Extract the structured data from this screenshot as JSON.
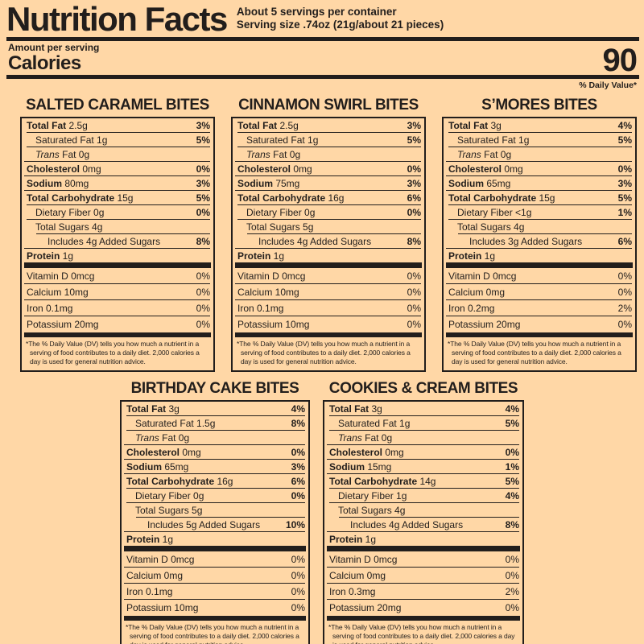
{
  "colors": {
    "background": "#ffd7a6",
    "ink": "#221e1c"
  },
  "header": {
    "title": "Nutrition Facts",
    "servings_per_container": "About 5 servings per container",
    "serving_size": "Serving size .74oz (21g/about 21 pieces)",
    "amount_per_serving_label": "Amount per serving",
    "calories_label": "Calories",
    "calories_value": "90",
    "daily_value_note": "% Daily Value*"
  },
  "footnote": "*The % Daily Value (DV) tells you how much a nutrient in a serving of food contributes to a daily diet. 2,000 calories a day is used for general nutrition advice.",
  "labels": [
    {
      "title": "SALTED CARAMEL BITES",
      "slug": "salted-caramel-bites",
      "nutrients": [
        {
          "name": "Total Fat",
          "amount": "2.5g",
          "dv": "3%",
          "level": 0,
          "bold": true
        },
        {
          "name": "Saturated Fat",
          "amount": "1g",
          "dv": "5%",
          "level": 1
        },
        {
          "name": "Trans Fat",
          "amount": "0g",
          "dv": "",
          "level": 1,
          "italic": true
        },
        {
          "name": "Cholesterol",
          "amount": "0mg",
          "dv": "0%",
          "level": 0,
          "bold": true
        },
        {
          "name": "Sodium",
          "amount": "80mg",
          "dv": "3%",
          "level": 0,
          "bold": true
        },
        {
          "name": "Total Carbohydrate",
          "amount": "15g",
          "dv": "5%",
          "level": 0,
          "bold": true
        },
        {
          "name": "Dietary Fiber",
          "amount": "0g",
          "dv": "0%",
          "level": 1
        },
        {
          "name": "Total Sugars",
          "amount": "4g",
          "dv": "",
          "level": 1
        },
        {
          "name": "Includes 4g Added Sugars",
          "amount": "",
          "dv": "8%",
          "level": 2
        },
        {
          "name": "Protein",
          "amount": "1g",
          "dv": "",
          "level": 0,
          "bold": true
        }
      ],
      "vitamins": [
        {
          "name": "Vitamin D",
          "amount": "0mcg",
          "dv": "0%"
        },
        {
          "name": "Calcium",
          "amount": "10mg",
          "dv": "0%"
        },
        {
          "name": "Iron",
          "amount": "0.1mg",
          "dv": "0%"
        },
        {
          "name": "Potassium",
          "amount": "20mg",
          "dv": "0%"
        }
      ]
    },
    {
      "title": "CINNAMON SWIRL BITES",
      "slug": "cinnamon-swirl-bites",
      "nutrients": [
        {
          "name": "Total Fat",
          "amount": "2.5g",
          "dv": "3%",
          "level": 0,
          "bold": true
        },
        {
          "name": "Saturated Fat",
          "amount": "1g",
          "dv": "5%",
          "level": 1
        },
        {
          "name": "Trans Fat",
          "amount": "0g",
          "dv": "",
          "level": 1,
          "italic": true
        },
        {
          "name": "Cholesterol",
          "amount": "0mg",
          "dv": "0%",
          "level": 0,
          "bold": true
        },
        {
          "name": "Sodium",
          "amount": "75mg",
          "dv": "3%",
          "level": 0,
          "bold": true
        },
        {
          "name": "Total Carbohydrate",
          "amount": "16g",
          "dv": "6%",
          "level": 0,
          "bold": true
        },
        {
          "name": "Dietary Fiber",
          "amount": "0g",
          "dv": "0%",
          "level": 1
        },
        {
          "name": "Total Sugars",
          "amount": "5g",
          "dv": "",
          "level": 1
        },
        {
          "name": "Includes 4g Added Sugars",
          "amount": "",
          "dv": "8%",
          "level": 2
        },
        {
          "name": "Protein",
          "amount": "1g",
          "dv": "",
          "level": 0,
          "bold": true
        }
      ],
      "vitamins": [
        {
          "name": "Vitamin D",
          "amount": "0mcg",
          "dv": "0%"
        },
        {
          "name": "Calcium",
          "amount": "10mg",
          "dv": "0%"
        },
        {
          "name": "Iron",
          "amount": "0.1mg",
          "dv": "0%"
        },
        {
          "name": "Potassium",
          "amount": "10mg",
          "dv": "0%"
        }
      ]
    },
    {
      "title": "S’MORES BITES",
      "slug": "smores-bites",
      "nutrients": [
        {
          "name": "Total Fat",
          "amount": "3g",
          "dv": "4%",
          "level": 0,
          "bold": true
        },
        {
          "name": "Saturated Fat",
          "amount": "1g",
          "dv": "5%",
          "level": 1
        },
        {
          "name": "Trans Fat",
          "amount": "0g",
          "dv": "",
          "level": 1,
          "italic": true
        },
        {
          "name": "Cholesterol",
          "amount": "0mg",
          "dv": "0%",
          "level": 0,
          "bold": true
        },
        {
          "name": "Sodium",
          "amount": "65mg",
          "dv": "3%",
          "level": 0,
          "bold": true
        },
        {
          "name": "Total Carbohydrate",
          "amount": "15g",
          "dv": "5%",
          "level": 0,
          "bold": true
        },
        {
          "name": "Dietary Fiber",
          "amount": "<1g",
          "dv": "1%",
          "level": 1
        },
        {
          "name": "Total Sugars",
          "amount": "4g",
          "dv": "",
          "level": 1
        },
        {
          "name": "Includes 3g Added Sugars",
          "amount": "",
          "dv": "6%",
          "level": 2
        },
        {
          "name": "Protein",
          "amount": "1g",
          "dv": "",
          "level": 0,
          "bold": true
        }
      ],
      "vitamins": [
        {
          "name": "Vitamin D",
          "amount": "0mcg",
          "dv": "0%"
        },
        {
          "name": "Calcium",
          "amount": "0mg",
          "dv": "0%"
        },
        {
          "name": "Iron",
          "amount": "0.2mg",
          "dv": "2%"
        },
        {
          "name": "Potassium",
          "amount": "20mg",
          "dv": "0%"
        }
      ]
    },
    {
      "title": "BIRTHDAY CAKE BITES",
      "slug": "birthday-cake-bites",
      "nutrients": [
        {
          "name": "Total Fat",
          "amount": "3g",
          "dv": "4%",
          "level": 0,
          "bold": true
        },
        {
          "name": "Saturated Fat",
          "amount": "1.5g",
          "dv": "8%",
          "level": 1
        },
        {
          "name": "Trans Fat",
          "amount": "0g",
          "dv": "",
          "level": 1,
          "italic": true
        },
        {
          "name": "Cholesterol",
          "amount": "0mg",
          "dv": "0%",
          "level": 0,
          "bold": true
        },
        {
          "name": "Sodium",
          "amount": "65mg",
          "dv": "3%",
          "level": 0,
          "bold": true
        },
        {
          "name": "Total Carbohydrate",
          "amount": "16g",
          "dv": "6%",
          "level": 0,
          "bold": true
        },
        {
          "name": "Dietary Fiber",
          "amount": "0g",
          "dv": "0%",
          "level": 1
        },
        {
          "name": "Total Sugars",
          "amount": "5g",
          "dv": "",
          "level": 1
        },
        {
          "name": "Includes 5g Added Sugars",
          "amount": "",
          "dv": "10%",
          "level": 2
        },
        {
          "name": "Protein",
          "amount": "1g",
          "dv": "",
          "level": 0,
          "bold": true
        }
      ],
      "vitamins": [
        {
          "name": "Vitamin D",
          "amount": "0mcg",
          "dv": "0%"
        },
        {
          "name": "Calcium",
          "amount": "0mg",
          "dv": "0%"
        },
        {
          "name": "Iron",
          "amount": "0.1mg",
          "dv": "0%"
        },
        {
          "name": "Potassium",
          "amount": "10mg",
          "dv": "0%"
        }
      ]
    },
    {
      "title": "COOKIES & CREAM BITES",
      "slug": "cookies-and-cream-bites",
      "nutrients": [
        {
          "name": "Total Fat",
          "amount": "3g",
          "dv": "4%",
          "level": 0,
          "bold": true
        },
        {
          "name": "Saturated Fat",
          "amount": "1g",
          "dv": "5%",
          "level": 1
        },
        {
          "name": "Trans Fat",
          "amount": "0g",
          "dv": "",
          "level": 1,
          "italic": true
        },
        {
          "name": "Cholesterol",
          "amount": "0mg",
          "dv": "0%",
          "level": 0,
          "bold": true
        },
        {
          "name": "Sodium",
          "amount": "15mg",
          "dv": "1%",
          "level": 0,
          "bold": true
        },
        {
          "name": "Total Carbohydrate",
          "amount": "14g",
          "dv": "5%",
          "level": 0,
          "bold": true
        },
        {
          "name": "Dietary Fiber",
          "amount": "1g",
          "dv": "4%",
          "level": 1
        },
        {
          "name": "Total Sugars",
          "amount": "4g",
          "dv": "",
          "level": 1
        },
        {
          "name": "Includes 4g Added Sugars",
          "amount": "",
          "dv": "8%",
          "level": 2
        },
        {
          "name": "Protein",
          "amount": "1g",
          "dv": "",
          "level": 0,
          "bold": true
        }
      ],
      "vitamins": [
        {
          "name": "Vitamin D",
          "amount": "0mcg",
          "dv": "0%"
        },
        {
          "name": "Calcium",
          "amount": "0mg",
          "dv": "0%"
        },
        {
          "name": "Iron",
          "amount": "0.3mg",
          "dv": "2%"
        },
        {
          "name": "Potassium",
          "amount": "20mg",
          "dv": "0%"
        }
      ]
    }
  ]
}
